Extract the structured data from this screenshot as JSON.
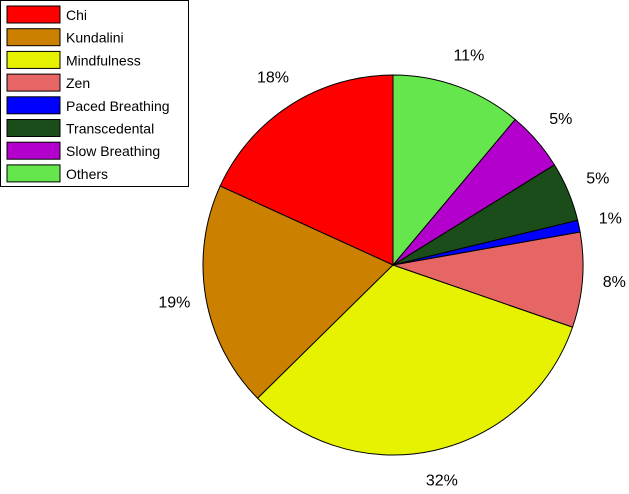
{
  "chart_data": {
    "type": "pie",
    "title": "",
    "start_angle_deg": 90,
    "direction": "counterclockwise",
    "legend_position": "top-left",
    "slices": [
      {
        "label": "Chi",
        "value": 18,
        "percent_label": "18%",
        "color": "#FF0000"
      },
      {
        "label": "Kundalini",
        "value": 19,
        "percent_label": "19%",
        "color": "#CC8000"
      },
      {
        "label": "Mindfulness",
        "value": 32,
        "percent_label": "32%",
        "color": "#E6F200"
      },
      {
        "label": "Zen",
        "value": 8,
        "percent_label": "8%",
        "color": "#E66666"
      },
      {
        "label": "Paced Breathing",
        "value": 1,
        "percent_label": "1%",
        "color": "#0000FF"
      },
      {
        "label": "Transcedental",
        "value": 5,
        "percent_label": "5%",
        "color": "#1A4D1A"
      },
      {
        "label": "Slow Breathing",
        "value": 5,
        "percent_label": "5%",
        "color": "#B300CC"
      },
      {
        "label": "Others",
        "value": 11,
        "percent_label": "11%",
        "color": "#66E64D"
      }
    ]
  }
}
